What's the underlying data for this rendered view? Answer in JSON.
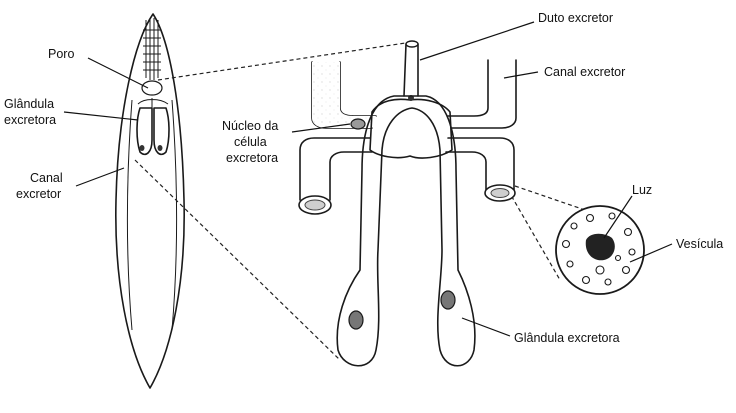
{
  "labels": {
    "poro": "Poro",
    "glandula_line1": "Glândula",
    "glandula_line2": "excretora",
    "canal_left_line1": "Canal",
    "canal_left_line2": "excretor",
    "duto_excretor": "Duto excretor",
    "canal_excretor_right": "Canal excretor",
    "nucleo_line1": "Núcleo da",
    "nucleo_line2": "célula",
    "nucleo_line3": "excretora",
    "luz": "Luz",
    "vesicula": "Vesícula",
    "glandula_excretora_bottom": "Glândula excretora"
  }
}
